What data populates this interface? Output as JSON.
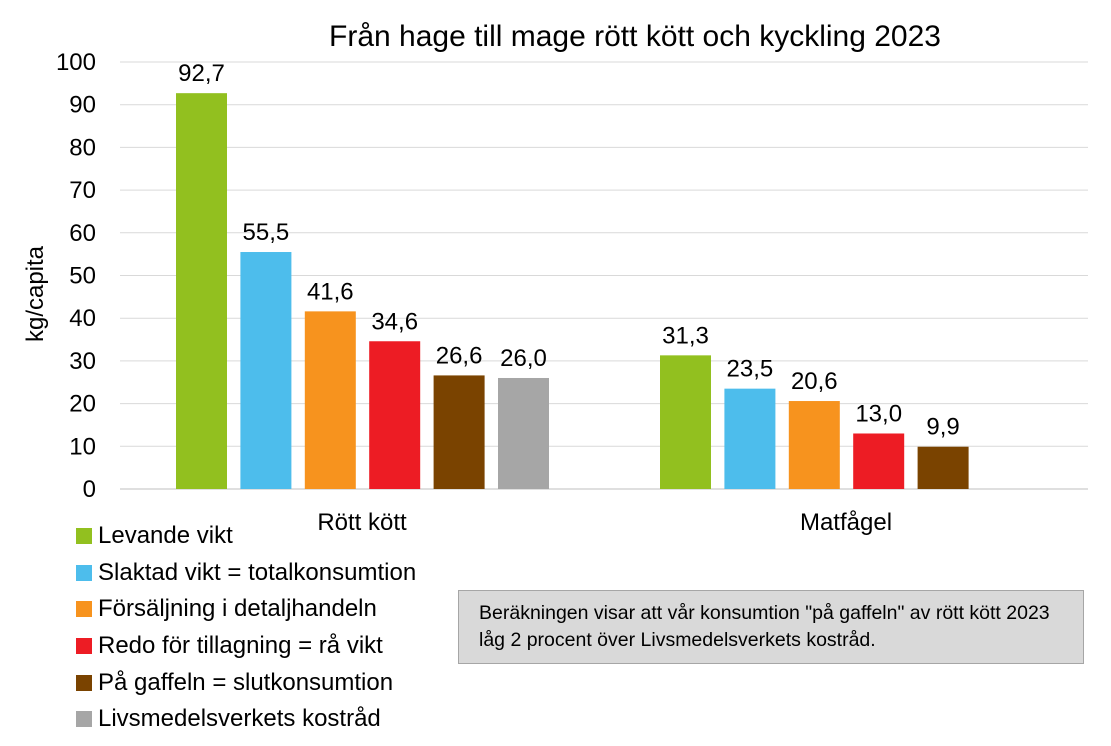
{
  "chart_data": {
    "type": "bar",
    "title": "Från hage till mage rött kött och kyckling 2023",
    "ylabel": "kg/capita",
    "xlabel": "",
    "ylim": [
      0,
      100
    ],
    "yticks": [
      "0",
      "10",
      "20",
      "30",
      "40",
      "50",
      "60",
      "70",
      "80",
      "90",
      "100"
    ],
    "grid": true,
    "legend_position": "bottom-left",
    "groups": [
      {
        "name": "Rött kött",
        "bars": [
          {
            "series": "Levande vikt",
            "value": 92.7,
            "label": "92,7"
          },
          {
            "series": "Slaktad vikt = totalkonsumtion",
            "value": 55.5,
            "label": "55,5"
          },
          {
            "series": "Försäljning i detaljhandeln",
            "value": 41.6,
            "label": "41,6"
          },
          {
            "series": "Redo för tillagning = rå vikt",
            "value": 34.6,
            "label": "34,6"
          },
          {
            "series": "På gaffeln = slutkonsumtion",
            "value": 26.6,
            "label": "26,6"
          },
          {
            "series": "Livsmedelsverkets kostråd",
            "value": 26.0,
            "label": "26,0"
          }
        ]
      },
      {
        "name": "Matfågel",
        "bars": [
          {
            "series": "Levande vikt",
            "value": 31.3,
            "label": "31,3"
          },
          {
            "series": "Slaktad vikt = totalkonsumtion",
            "value": 23.5,
            "label": "23,5"
          },
          {
            "series": "Försäljning i detaljhandeln",
            "value": 20.6,
            "label": "20,6"
          },
          {
            "series": "Redo för tillagning = rå vikt",
            "value": 13.0,
            "label": "13,0"
          },
          {
            "series": "På gaffeln = slutkonsumtion",
            "value": 9.9,
            "label": "9,9"
          }
        ]
      }
    ],
    "series": [
      {
        "name": "Levande vikt",
        "color": "#92c01f"
      },
      {
        "name": "Slaktad vikt = totalkonsumtion",
        "color": "#4dbdec"
      },
      {
        "name": "Försäljning i detaljhandeln",
        "color": "#f7931e"
      },
      {
        "name": "Redo för tillagning = rå vikt",
        "color": "#ed1c24"
      },
      {
        "name": "På gaffeln = slutkonsumtion",
        "color": "#7a4300"
      },
      {
        "name": "Livsmedelsverkets kostråd",
        "color": "#a6a6a6"
      }
    ],
    "annotation": "Beräkningen visar att vår konsumtion \"på gaffeln\" av rött kött 2023 låg 2 procent över Livsmedelsverkets kostråd."
  }
}
